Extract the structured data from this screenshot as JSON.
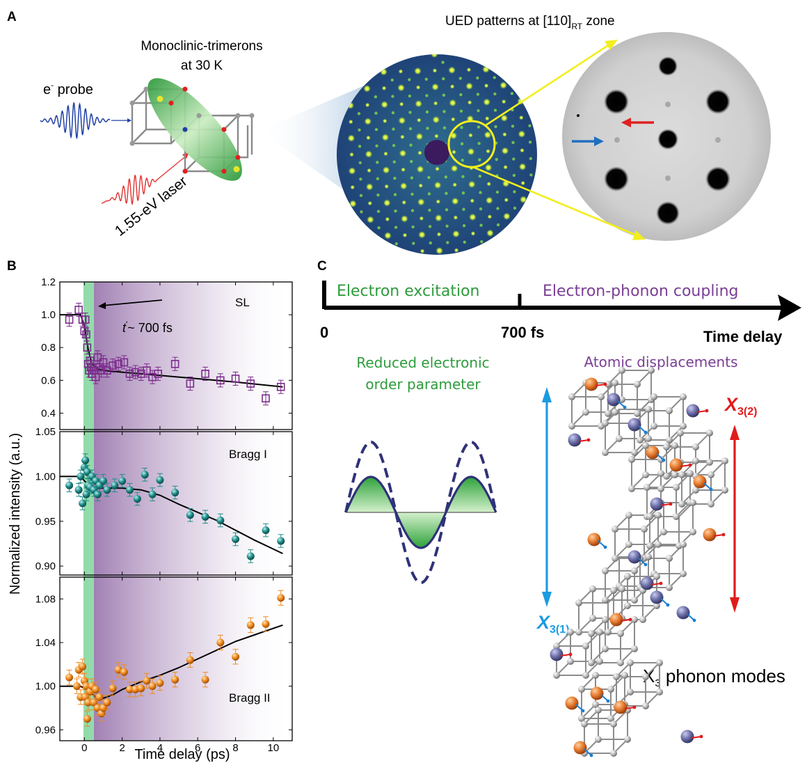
{
  "panel_a": {
    "label": "A",
    "trimer_title": "Monoclinic-trimerons",
    "trimer_sub": "at 30 K",
    "probe_main": "e",
    "probe_sup": "-",
    "probe_rest": " probe",
    "laser": "1.55-eV laser",
    "ued_pre": "UED patterns at [110]",
    "ued_sub": "RT",
    "ued_post": " zone",
    "colors": {
      "probe_wave": "#1f3fa6",
      "laser_wave": "#e23030",
      "green": "#3aa83a",
      "ued_bg": "#2a5d88",
      "spot": "#e0e63a",
      "arrow_yellow": "#f2ee1e",
      "red_arrow": "#e02020",
      "blue_arrow": "#1f6fc0"
    }
  },
  "panel_b": {
    "label": "B",
    "ylabel": "Normalized intensity (a.u.)",
    "xlabel": "Time delay (ps)",
    "annotation_t": "t",
    "annotation_rest": "~ 700 fs"
  },
  "panel_c": {
    "label": "C",
    "phase1": "Electron excitation",
    "phase2": "Electron-phonon coupling",
    "t0": "0",
    "t1": "700 fs",
    "time_delay": "Time delay",
    "reduced_1": "Reduced electronic",
    "reduced_2": "order parameter",
    "atomic": "Atomic displacements",
    "x31_main": "X",
    "x31_sub": "3(1)",
    "x32_main": "X",
    "x32_sub": "3(2)",
    "modes_main": "X",
    "modes_sub": "3",
    "modes_rest": " phonon modes",
    "colors": {
      "green_text": "#2e9b3c",
      "purple_text": "#7a3f94",
      "blue": "#1b9be0",
      "red": "#e11b1b",
      "orange": "#e67a2e",
      "violet": "#6e6fa8"
    }
  },
  "chart_data": [
    {
      "type": "scatter",
      "title": "SL",
      "xlim": [
        -1.3,
        11
      ],
      "ylim": [
        0.3,
        1.2
      ],
      "yticks": [
        "0.4",
        "0.6",
        "0.8",
        "1.0",
        "1.2"
      ],
      "marker": "open-square",
      "color": "#7b2a8c",
      "x": [
        -0.8,
        -0.3,
        -0.1,
        0.0,
        0.05,
        0.1,
        0.15,
        0.2,
        0.25,
        0.3,
        0.35,
        0.4,
        0.5,
        0.6,
        0.7,
        0.8,
        0.9,
        1.0,
        1.2,
        1.5,
        1.8,
        2.1,
        2.4,
        2.7,
        3.0,
        3.3,
        3.6,
        3.9,
        4.8,
        5.6,
        6.4,
        7.2,
        8.0,
        8.8,
        9.6,
        10.4
      ],
      "y": [
        0.97,
        1.03,
        0.97,
        0.9,
        0.97,
        0.88,
        0.8,
        0.7,
        0.66,
        0.72,
        0.68,
        0.64,
        0.66,
        0.62,
        0.74,
        0.68,
        0.66,
        0.71,
        0.66,
        0.69,
        0.7,
        0.71,
        0.64,
        0.65,
        0.64,
        0.66,
        0.62,
        0.64,
        0.7,
        0.58,
        0.64,
        0.6,
        0.61,
        0.58,
        0.49,
        0.56
      ],
      "fit": {
        "x": [
          -1.3,
          -0.2,
          0.0,
          0.2,
          0.4,
          0.7,
          1.0,
          2,
          4,
          6,
          8,
          10.5
        ],
        "y": [
          1.0,
          1.0,
          0.93,
          0.79,
          0.7,
          0.67,
          0.66,
          0.65,
          0.63,
          0.61,
          0.59,
          0.56
        ]
      }
    },
    {
      "type": "scatter",
      "title": "Bragg I",
      "xlim": [
        -1.3,
        11
      ],
      "ylim": [
        0.89,
        1.05
      ],
      "yticks": [
        "0.90",
        "0.95",
        "1.00",
        "1.05"
      ],
      "marker": "sphere",
      "color": "#1f8d8a",
      "x": [
        -0.8,
        -0.3,
        -0.2,
        -0.1,
        0.0,
        0.05,
        0.1,
        0.15,
        0.2,
        0.3,
        0.4,
        0.5,
        0.6,
        0.7,
        0.8,
        1.0,
        1.2,
        1.6,
        2.0,
        2.4,
        2.8,
        3.2,
        3.6,
        4.0,
        4.8,
        5.6,
        6.4,
        7.2,
        8.0,
        8.8,
        9.6,
        10.4
      ],
      "y": [
        0.99,
        0.985,
        1.0,
        0.97,
        1.01,
        1.018,
        0.98,
        1.005,
        0.99,
        0.988,
        1.0,
        0.985,
        0.995,
        0.98,
        0.99,
        0.995,
        0.985,
        0.99,
        0.995,
        0.985,
        0.975,
        1.002,
        0.98,
        0.996,
        0.982,
        0.957,
        0.955,
        0.951,
        0.93,
        0.911,
        0.94,
        0.928
      ],
      "fit": {
        "x": [
          -1.3,
          -0.2,
          0.0,
          0.3,
          0.6,
          1,
          2,
          3,
          4,
          5,
          6,
          7,
          8,
          9,
          10.5
        ],
        "y": [
          1.0,
          1.0,
          0.995,
          0.99,
          0.987,
          0.987,
          0.987,
          0.985,
          0.979,
          0.969,
          0.96,
          0.951,
          0.94,
          0.929,
          0.914
        ]
      }
    },
    {
      "type": "scatter",
      "title": "Bragg II",
      "xlim": [
        -1.3,
        11
      ],
      "ylim": [
        0.95,
        1.1
      ],
      "yticks": [
        "0.96",
        "1.00",
        "1.04",
        "1.08"
      ],
      "marker": "sphere",
      "color": "#ee8a1e",
      "x": [
        -0.8,
        -0.4,
        -0.3,
        -0.2,
        -0.1,
        0.0,
        0.05,
        0.1,
        0.15,
        0.2,
        0.3,
        0.4,
        0.5,
        0.6,
        0.7,
        0.8,
        0.9,
        1.0,
        1.2,
        1.5,
        1.8,
        2.1,
        2.4,
        2.7,
        3.0,
        3.3,
        3.6,
        4.0,
        4.8,
        5.6,
        6.4,
        7.2,
        8.0,
        8.8,
        9.6,
        10.4
      ],
      "y": [
        1.008,
        1.0,
        1.015,
        0.99,
        1.018,
        1.005,
        0.99,
        1.0,
        0.97,
        0.985,
        0.995,
        1.0,
        0.985,
        0.997,
        0.98,
        0.99,
        0.975,
        0.98,
        0.985,
        0.998,
        1.015,
        1.013,
        0.997,
        0.997,
        0.998,
        1.005,
        1.0,
        1.003,
        1.006,
        1.024,
        1.006,
        1.04,
        1.027,
        1.056,
        1.057,
        1.081
      ],
      "fit": {
        "x": [
          -1.3,
          -0.2,
          0.2,
          0.6,
          1.0,
          1.5,
          2,
          3,
          4,
          5,
          6,
          7,
          8,
          9,
          10.5
        ],
        "y": [
          1.0,
          1.0,
          0.996,
          0.99,
          0.989,
          0.992,
          0.997,
          1.004,
          1.01,
          1.017,
          1.025,
          1.033,
          1.041,
          1.047,
          1.056
        ]
      }
    }
  ],
  "panel_b_axes": {
    "xticks": [
      "0",
      "2",
      "4",
      "6",
      "8",
      "10"
    ],
    "xlim": [
      -1.3,
      11
    ]
  }
}
